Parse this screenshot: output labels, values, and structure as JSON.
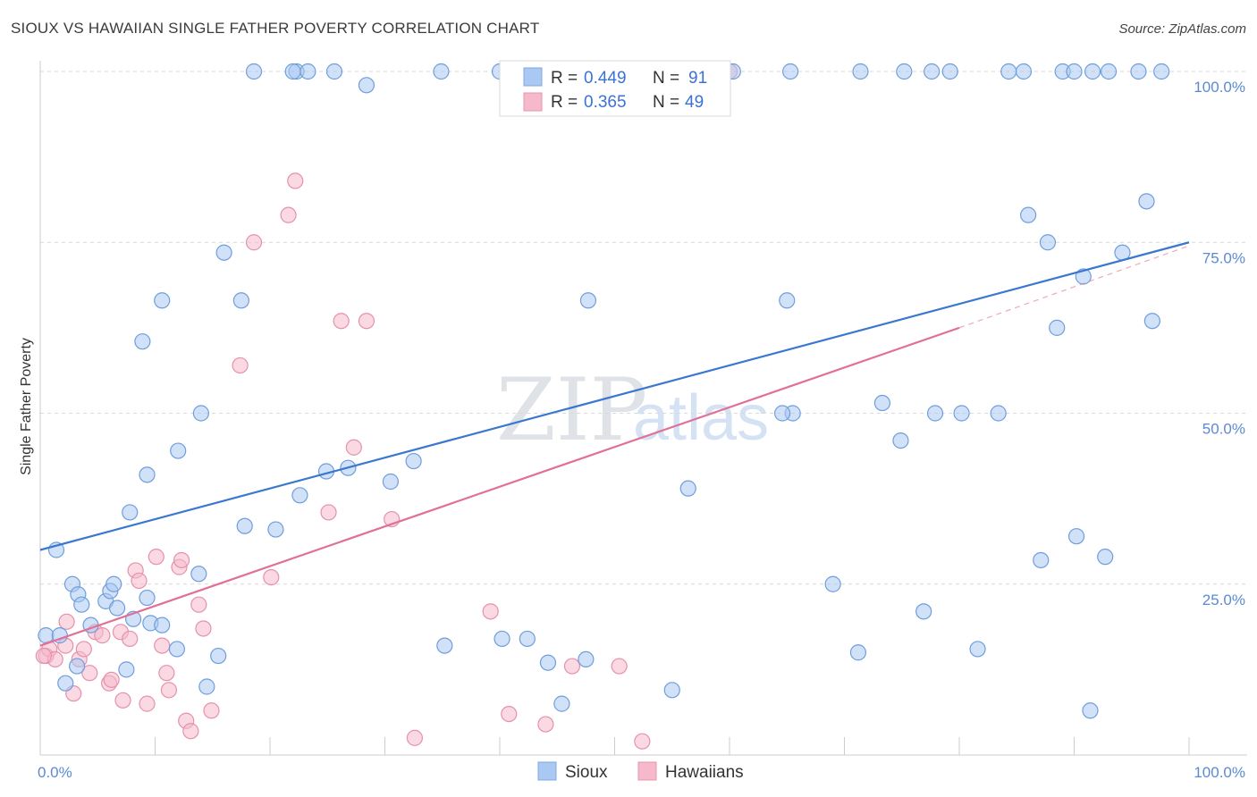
{
  "header": {
    "title": "SIOUX VS HAWAIIAN SINGLE FATHER POVERTY CORRELATION CHART",
    "source": "Source: ZipAtlas.com"
  },
  "watermark": {
    "zip": "ZIP",
    "atlas": "atlas"
  },
  "legend_top": {
    "rows": [
      {
        "r_label": "R =",
        "r_value": "0.449",
        "n_label": "N =",
        "n_value": "91",
        "color": "#a9c8f2"
      },
      {
        "r_label": "R =",
        "r_value": "0.365",
        "n_label": "N =",
        "n_value": "49",
        "color": "#f6b9cc"
      }
    ]
  },
  "legend_bottom": {
    "items": [
      {
        "label": "Sioux",
        "color": "#a9c8f2"
      },
      {
        "label": "Hawaiians",
        "color": "#f6b9cc"
      }
    ]
  },
  "chart_data": {
    "type": "scatter",
    "ylabel": "Single Father Poverty",
    "xlim": [
      0,
      100
    ],
    "ylim": [
      0,
      100
    ],
    "x_ticks": [
      "0.0%",
      "100.0%"
    ],
    "y_ticks": [
      "25.0%",
      "50.0%",
      "75.0%",
      "100.0%"
    ],
    "y_tick_values": [
      25,
      50,
      75,
      100
    ],
    "grid": true,
    "colors": {
      "sioux": "#3a78d0",
      "hawaiians": "#e07098",
      "sioux_fill": "#a9c8f2",
      "hawaiians_fill": "#f6b9cc"
    },
    "series": [
      {
        "name": "Sioux",
        "trend": {
          "x": [
            0,
            100
          ],
          "y": [
            30.0,
            75.0
          ],
          "dashed_extension": false
        },
        "points": [
          [
            1.4,
            30
          ],
          [
            2.8,
            25
          ],
          [
            3.3,
            23.5
          ],
          [
            3.6,
            22
          ],
          [
            4.4,
            19
          ],
          [
            5.7,
            22.5
          ],
          [
            6.1,
            24
          ],
          [
            6.4,
            25
          ],
          [
            6.7,
            21.5
          ],
          [
            8.1,
            19.9
          ],
          [
            7.5,
            12.5
          ],
          [
            9.3,
            23
          ],
          [
            9.6,
            19.3
          ],
          [
            10.6,
            19
          ],
          [
            11.9,
            15.5
          ],
          [
            13.8,
            26.5
          ],
          [
            14.5,
            10
          ],
          [
            15.5,
            14.5
          ],
          [
            2.2,
            10.5
          ],
          [
            0.5,
            17.5
          ],
          [
            1.7,
            17.5
          ],
          [
            3.2,
            13
          ],
          [
            7.8,
            35.5
          ],
          [
            9.3,
            41
          ],
          [
            12.0,
            44.5
          ],
          [
            14.0,
            50
          ],
          [
            8.9,
            60.5
          ],
          [
            10.6,
            66.5
          ],
          [
            16.0,
            73.5
          ],
          [
            17.5,
            66.5
          ],
          [
            17.8,
            33.5
          ],
          [
            20.5,
            33
          ],
          [
            22.6,
            38
          ],
          [
            24.9,
            41.5
          ],
          [
            26.8,
            42
          ],
          [
            30.5,
            40
          ],
          [
            32.5,
            43
          ],
          [
            35.2,
            16
          ],
          [
            40.2,
            17
          ],
          [
            42.4,
            17
          ],
          [
            44.2,
            13.5
          ],
          [
            47.5,
            14
          ],
          [
            47.7,
            66.5
          ],
          [
            45.4,
            7.5
          ],
          [
            55.0,
            9.5
          ],
          [
            56.4,
            39
          ],
          [
            65.0,
            66.5
          ],
          [
            65.5,
            50
          ],
          [
            64.6,
            50
          ],
          [
            69.0,
            25
          ],
          [
            71.2,
            15
          ],
          [
            73.3,
            51.5
          ],
          [
            74.9,
            46
          ],
          [
            76.9,
            21
          ],
          [
            80.2,
            50
          ],
          [
            83.4,
            50
          ],
          [
            77.9,
            50
          ],
          [
            81.6,
            15.5
          ],
          [
            86.0,
            79
          ],
          [
            87.7,
            75
          ],
          [
            87.1,
            28.5
          ],
          [
            88.5,
            62.5
          ],
          [
            90.2,
            32
          ],
          [
            91.4,
            6.5
          ],
          [
            92.7,
            29
          ],
          [
            90.8,
            70
          ],
          [
            94.2,
            73.5
          ],
          [
            96.3,
            81
          ],
          [
            96.8,
            63.5
          ],
          [
            18.6,
            100
          ],
          [
            22.3,
            100
          ],
          [
            25.6,
            100
          ],
          [
            23.3,
            100
          ],
          [
            28.4,
            98
          ],
          [
            34.9,
            100
          ],
          [
            40.0,
            100
          ],
          [
            60.3,
            100
          ],
          [
            65.3,
            100
          ],
          [
            71.4,
            100
          ],
          [
            75.2,
            100
          ],
          [
            77.6,
            100
          ],
          [
            79.2,
            100
          ],
          [
            84.3,
            100
          ],
          [
            85.6,
            100
          ],
          [
            89.0,
            100
          ],
          [
            90.0,
            100
          ],
          [
            91.6,
            100
          ],
          [
            93.0,
            100
          ],
          [
            95.6,
            100
          ],
          [
            97.6,
            100
          ],
          [
            22.0,
            100
          ]
        ]
      },
      {
        "name": "Hawaiians",
        "trend": {
          "x": [
            0,
            80
          ],
          "y": [
            16.0,
            62.5
          ],
          "dashed_extension": true,
          "dashed_to": [
            100,
            74.5
          ]
        },
        "points": [
          [
            0.5,
            14.5
          ],
          [
            0.8,
            15.5
          ],
          [
            1.3,
            14
          ],
          [
            2.2,
            16
          ],
          [
            2.3,
            19.5
          ],
          [
            2.9,
            9
          ],
          [
            3.4,
            14
          ],
          [
            3.8,
            15.5
          ],
          [
            4.3,
            12
          ],
          [
            4.8,
            18
          ],
          [
            5.4,
            17.5
          ],
          [
            6.0,
            10.5
          ],
          [
            6.2,
            11
          ],
          [
            7.0,
            18
          ],
          [
            7.2,
            8
          ],
          [
            7.8,
            17
          ],
          [
            8.3,
            27
          ],
          [
            8.6,
            25.5
          ],
          [
            9.3,
            7.5
          ],
          [
            10.1,
            29
          ],
          [
            10.6,
            16
          ],
          [
            11.0,
            12
          ],
          [
            11.2,
            9.5
          ],
          [
            12.1,
            27.5
          ],
          [
            12.7,
            5
          ],
          [
            13.1,
            3.5
          ],
          [
            13.8,
            22
          ],
          [
            14.2,
            18.5
          ],
          [
            14.9,
            6.5
          ],
          [
            12.3,
            28.5
          ],
          [
            17.4,
            57
          ],
          [
            18.6,
            75
          ],
          [
            20.1,
            26
          ],
          [
            21.6,
            79
          ],
          [
            22.2,
            84
          ],
          [
            25.1,
            35.5
          ],
          [
            26.2,
            63.5
          ],
          [
            27.3,
            45
          ],
          [
            28.4,
            63.5
          ],
          [
            30.6,
            34.5
          ],
          [
            32.6,
            2.5
          ],
          [
            39.2,
            21
          ],
          [
            40.8,
            6
          ],
          [
            44.0,
            4.5
          ],
          [
            46.3,
            13
          ],
          [
            50.4,
            13
          ],
          [
            52.4,
            2
          ],
          [
            60.0,
            100
          ],
          [
            0.3,
            14.5
          ]
        ]
      }
    ]
  }
}
